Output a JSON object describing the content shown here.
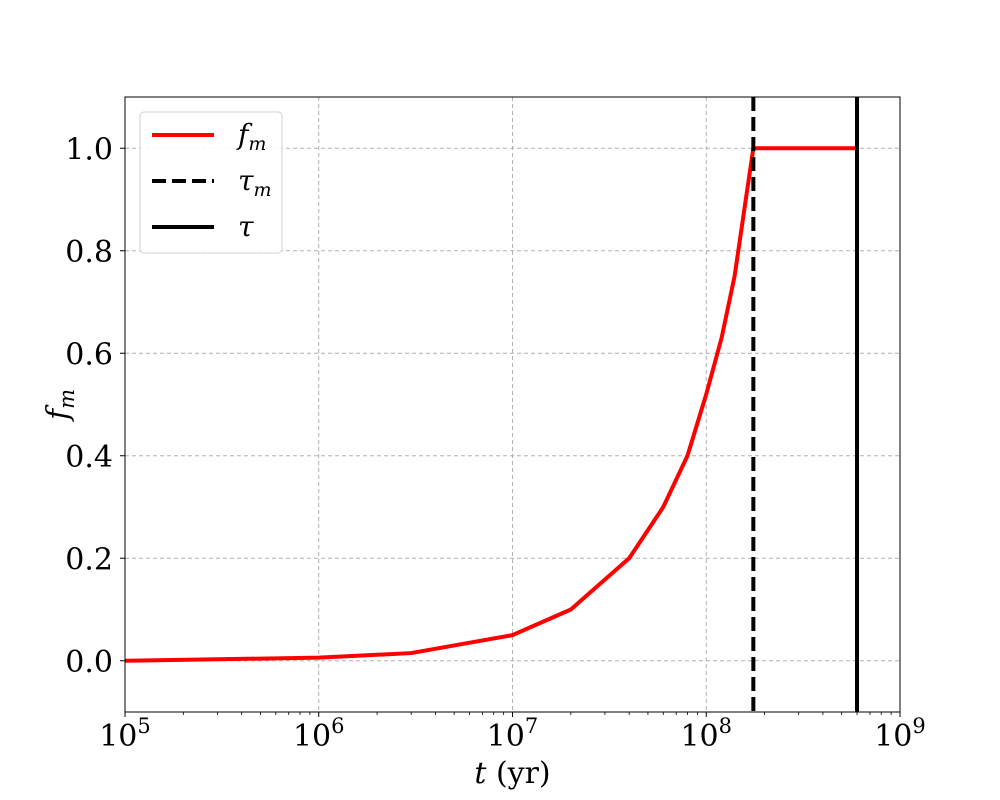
{
  "chart_data": {
    "type": "line",
    "xlabel": "t (yr)",
    "ylabel": "f_m",
    "xscale": "log",
    "xlim": [
      100000,
      1000000000
    ],
    "ylim": [
      -0.1,
      1.1
    ],
    "grid": true,
    "legend_position": "top-left",
    "x_ticks": [
      {
        "value": 100000,
        "base": "10",
        "exp": "5"
      },
      {
        "value": 1000000,
        "base": "10",
        "exp": "6"
      },
      {
        "value": 10000000,
        "base": "10",
        "exp": "7"
      },
      {
        "value": 100000000,
        "base": "10",
        "exp": "8"
      },
      {
        "value": 1000000000,
        "base": "10",
        "exp": "9"
      }
    ],
    "y_ticks": [
      {
        "value": 0.0,
        "label": "0.0"
      },
      {
        "value": 0.2,
        "label": "0.2"
      },
      {
        "value": 0.4,
        "label": "0.4"
      },
      {
        "value": 0.6,
        "label": "0.6"
      },
      {
        "value": 0.8,
        "label": "0.8"
      },
      {
        "value": 1.0,
        "label": "1.0"
      }
    ],
    "series": [
      {
        "name": "f_m",
        "color": "#ff0000",
        "style": "solid",
        "x": [
          100000,
          1000000,
          3000000,
          10000000,
          20000000,
          40000000,
          60000000,
          80000000,
          100000000,
          120000000,
          140000000,
          160000000,
          175000000,
          250000000,
          400000000,
          600000000
        ],
        "y": [
          0.0,
          0.006,
          0.015,
          0.05,
          0.1,
          0.2,
          0.3,
          0.4,
          0.52,
          0.63,
          0.75,
          0.9,
          1.0,
          1.0,
          1.0,
          1.0
        ]
      }
    ],
    "vlines": [
      {
        "name": "τ_m",
        "x": 175000000,
        "color": "#000000",
        "style": "dashed"
      },
      {
        "name": "τ",
        "x": 600000000,
        "color": "#000000",
        "style": "solid"
      }
    ]
  }
}
